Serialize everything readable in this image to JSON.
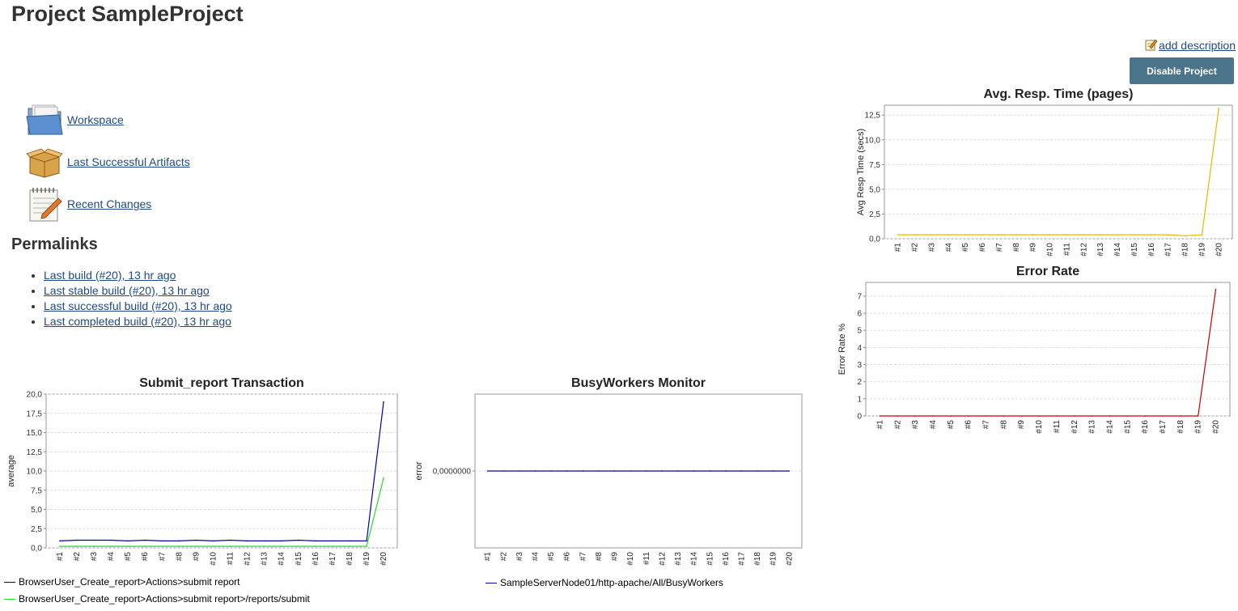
{
  "page": {
    "title": "Project SampleProject",
    "add_description": "add description",
    "disable_button": "Disable Project"
  },
  "tasks": [
    {
      "label": "Workspace",
      "icon": "folder-icon"
    },
    {
      "label": "Last Successful Artifacts",
      "icon": "package-box-icon"
    },
    {
      "label": "Recent Changes",
      "icon": "notepad-pencil-icon"
    }
  ],
  "permalinks": {
    "title": "Permalinks",
    "items": [
      "Last build (#20), 13 hr ago",
      "Last stable build (#20), 13 hr ago",
      "Last successful build (#20), 13 hr ago",
      "Last completed build (#20), 13 hr ago"
    ]
  },
  "colors": {
    "link": "#204a87",
    "button_bg": "#4b758b",
    "series_blue": "#0000aa",
    "series_green": "#22dd22",
    "series_yellow": "#e6b800",
    "series_red": "#cc0000",
    "grid": "#dddddd"
  },
  "chart_data": [
    {
      "id": "avg_resp",
      "type": "line",
      "title": "Avg. Resp. Time (pages)",
      "xlabel": "",
      "ylabel": "Avg Resp Time (secs)",
      "ylim": [
        0,
        13.5
      ],
      "yticks": [
        0,
        2.5,
        5,
        7.5,
        10,
        12.5
      ],
      "ytick_labels": [
        "0,0",
        "2,5",
        "5,0",
        "7,5",
        "10,0",
        "12,5"
      ],
      "categories": [
        "#1",
        "#2",
        "#3",
        "#4",
        "#5",
        "#6",
        "#7",
        "#8",
        "#9",
        "#10",
        "#11",
        "#12",
        "#13",
        "#14",
        "#15",
        "#16",
        "#17",
        "#18",
        "#19",
        "#20"
      ],
      "series": [
        {
          "name": "",
          "color": "#e6b800",
          "values": [
            0.4,
            0.4,
            0.4,
            0.4,
            0.4,
            0.4,
            0.4,
            0.4,
            0.4,
            0.4,
            0.4,
            0.4,
            0.4,
            0.4,
            0.4,
            0.4,
            0.4,
            0.3,
            0.4,
            13.2
          ]
        }
      ],
      "grid": true,
      "legend": "none"
    },
    {
      "id": "error_rate",
      "type": "line",
      "title": "Error Rate",
      "xlabel": "",
      "ylabel": "Error Rate %",
      "ylim": [
        0,
        7.8
      ],
      "yticks": [
        0,
        1,
        2,
        3,
        4,
        5,
        6,
        7
      ],
      "ytick_labels": [
        "0",
        "1",
        "2",
        "3",
        "4",
        "5",
        "6",
        "7"
      ],
      "categories": [
        "#1",
        "#2",
        "#3",
        "#4",
        "#5",
        "#6",
        "#7",
        "#8",
        "#9",
        "#10",
        "#11",
        "#12",
        "#13",
        "#14",
        "#15",
        "#16",
        "#17",
        "#18",
        "#19",
        "#20"
      ],
      "series": [
        {
          "name": "",
          "color": "#cc0000",
          "values": [
            0,
            0,
            0,
            0,
            0,
            0,
            0,
            0,
            0,
            0,
            0,
            0,
            0,
            0,
            0,
            0,
            0,
            0,
            0,
            7.4
          ]
        }
      ],
      "grid": true,
      "legend": "none"
    },
    {
      "id": "submit_report",
      "type": "line",
      "title": "Submit_report Transaction",
      "xlabel": "",
      "ylabel": "average",
      "ylim": [
        0,
        20
      ],
      "yticks": [
        0,
        2.5,
        5,
        7.5,
        10,
        12.5,
        15,
        17.5,
        20
      ],
      "ytick_labels": [
        "0,0",
        "2,5",
        "5,0",
        "7,5",
        "10,0",
        "12,5",
        "15,0",
        "17,5",
        "20,0"
      ],
      "categories": [
        "#1",
        "#2",
        "#3",
        "#4",
        "#5",
        "#6",
        "#7",
        "#8",
        "#9",
        "#10",
        "#11",
        "#12",
        "#13",
        "#14",
        "#15",
        "#16",
        "#17",
        "#18",
        "#19",
        "#20"
      ],
      "series": [
        {
          "name": "BrowserUser_Create_report>Actions>submit report",
          "color": "#0000aa",
          "values": [
            0.9,
            1.0,
            1.0,
            1.0,
            0.9,
            1.0,
            0.9,
            0.9,
            1.0,
            0.9,
            1.0,
            0.9,
            0.9,
            0.9,
            1.0,
            0.9,
            0.9,
            0.9,
            0.9,
            19.0
          ]
        },
        {
          "name": "BrowserUser_Create_report>Actions>submit report>/reports/submit",
          "color": "#22dd22",
          "values": [
            0.2,
            0.2,
            0.2,
            0.2,
            0.2,
            0.2,
            0.2,
            0.2,
            0.2,
            0.2,
            0.2,
            0.2,
            0.2,
            0.2,
            0.2,
            0.2,
            0.2,
            0.2,
            0.2,
            9.1
          ]
        }
      ],
      "grid": true,
      "legend": "bottom-left"
    },
    {
      "id": "busy_workers",
      "type": "line",
      "title": "BusyWorkers Monitor",
      "xlabel": "",
      "ylabel": "error",
      "ylim": [
        -1,
        1
      ],
      "yticks": [
        0
      ],
      "ytick_labels": [
        "0,0000000"
      ],
      "categories": [
        "#1",
        "#2",
        "#3",
        "#4",
        "#5",
        "#6",
        "#7",
        "#8",
        "#9",
        "#10",
        "#11",
        "#12",
        "#13",
        "#14",
        "#15",
        "#16",
        "#17",
        "#18",
        "#19",
        "#20"
      ],
      "series": [
        {
          "name": "SampleServerNode01/http-apache/All/BusyWorkers",
          "color": "#0000aa",
          "values": [
            0,
            0,
            0,
            0,
            0,
            0,
            0,
            0,
            0,
            0,
            0,
            0,
            0,
            0,
            0,
            0,
            0,
            0,
            0,
            0
          ]
        }
      ],
      "grid": true,
      "legend": "bottom-left"
    }
  ]
}
